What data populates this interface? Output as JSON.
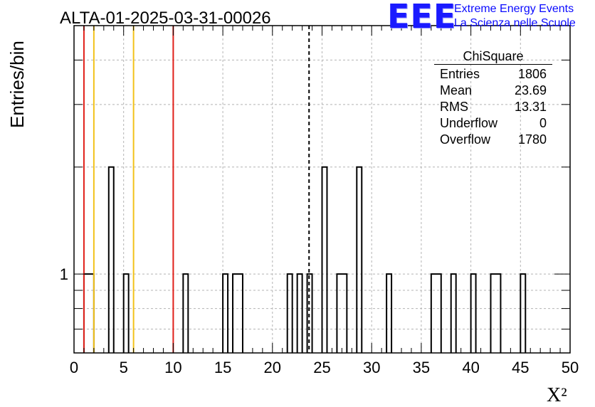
{
  "chart_data": {
    "type": "bar",
    "title": "ALTA-01-2025-03-31-00026",
    "xlabel": "X²",
    "ylabel": "Entries/bin",
    "xlim": [
      0,
      50
    ],
    "ylog": true,
    "ylim": [
      0.6,
      5
    ],
    "bin_width": 0.5,
    "x_tick_labels": [
      "0",
      "5",
      "10",
      "15",
      "20",
      "25",
      "30",
      "35",
      "40",
      "45",
      "50"
    ],
    "y_tick_labels": [
      "1"
    ],
    "grid": true,
    "bins": [
      {
        "x0": 1.0,
        "x1": 2.0,
        "count": 1
      },
      {
        "x0": 3.5,
        "x1": 4.0,
        "count": 2
      },
      {
        "x0": 5.0,
        "x1": 5.5,
        "count": 1
      },
      {
        "x0": 11.0,
        "x1": 11.5,
        "count": 1
      },
      {
        "x0": 15.0,
        "x1": 15.5,
        "count": 1
      },
      {
        "x0": 16.0,
        "x1": 17.0,
        "count": 1
      },
      {
        "x0": 21.5,
        "x1": 22.0,
        "count": 1
      },
      {
        "x0": 22.5,
        "x1": 23.0,
        "count": 1
      },
      {
        "x0": 23.5,
        "x1": 24.0,
        "count": 1
      },
      {
        "x0": 25.0,
        "x1": 25.5,
        "count": 2
      },
      {
        "x0": 26.5,
        "x1": 27.5,
        "count": 1
      },
      {
        "x0": 28.5,
        "x1": 29.0,
        "count": 2
      },
      {
        "x0": 31.5,
        "x1": 32.0,
        "count": 1
      },
      {
        "x0": 36.0,
        "x1": 37.0,
        "count": 1
      },
      {
        "x0": 38.0,
        "x1": 38.5,
        "count": 1
      },
      {
        "x0": 40.0,
        "x1": 40.5,
        "count": 1
      },
      {
        "x0": 42.0,
        "x1": 43.0,
        "count": 1
      },
      {
        "x0": 45.0,
        "x1": 45.5,
        "count": 1
      }
    ],
    "reference_lines": [
      {
        "x": 1.0,
        "color": "#e0201a",
        "style": "solid"
      },
      {
        "x": 2.0,
        "color": "#f2c21a",
        "style": "solid"
      },
      {
        "x": 6.0,
        "color": "#f2c21a",
        "style": "solid"
      },
      {
        "x": 10.0,
        "color": "#e0201a",
        "style": "solid"
      },
      {
        "x": 23.69,
        "color": "#000000",
        "style": "dashed"
      }
    ],
    "stats_box": {
      "name": "ChiSquare",
      "rows": [
        {
          "label": "Entries",
          "value": "1806"
        },
        {
          "label": "Mean",
          "value": "23.69"
        },
        {
          "label": "RMS",
          "value": "13.31"
        },
        {
          "label": "Underflow",
          "value": "0"
        },
        {
          "label": "Overflow",
          "value": "1780"
        }
      ]
    }
  },
  "logo": {
    "text": "EEE",
    "line1": "Extreme Energy Events",
    "line2": "La Scienza nelle Scuole",
    "color": "#1a1aff"
  }
}
